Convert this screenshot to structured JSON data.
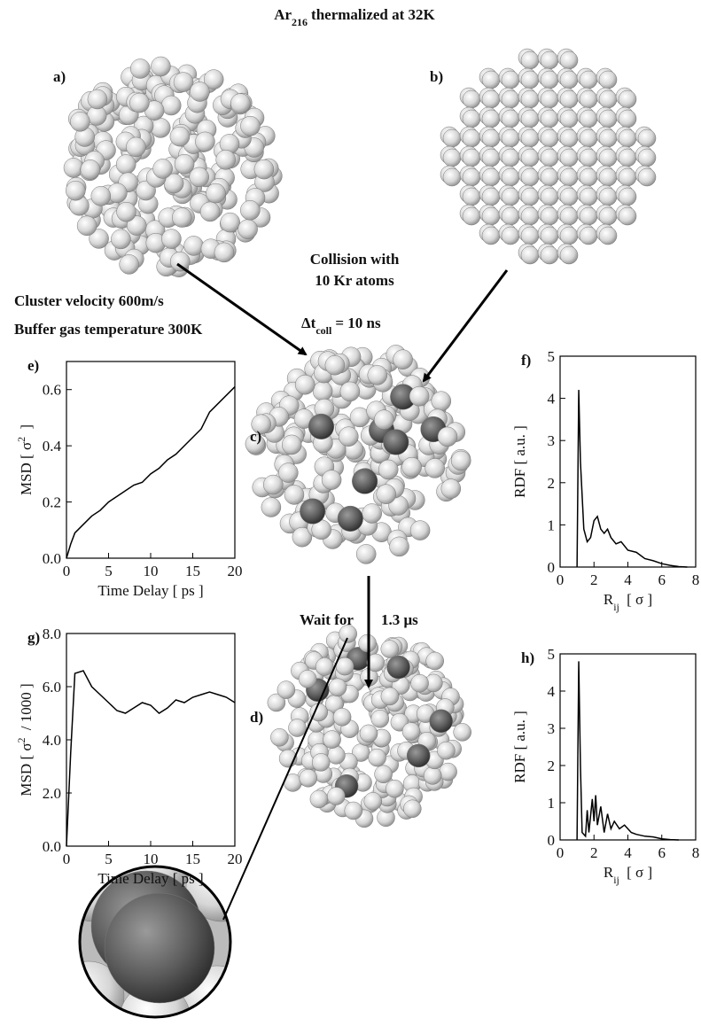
{
  "figure": {
    "title": {
      "text": "Ar",
      "sub": "216",
      "after": "thermalized at 32K"
    },
    "panel_labels": {
      "a": "a)",
      "b": "b)",
      "c": "c)",
      "d": "d)"
    },
    "collision": [
      "Collision with",
      "10 Kr atoms"
    ],
    "cluster_velocity": "Cluster velocity 600m/s",
    "buffer_gas": "Buffer gas temperature 300K",
    "collision_time": {
      "text": "Δt",
      "sub": "coll",
      "after": "= 10 ns"
    },
    "wait": [
      "Wait for",
      "1.3 μs"
    ]
  },
  "chart_data": [
    {
      "type": "line",
      "label": "e)",
      "xlabel": "Time Delay  [ ps ]",
      "ylabel": {
        "text": "MSD  [ σ",
        "sup": "2",
        "after": " ]"
      },
      "xlim": [
        0,
        20
      ],
      "xticks": [
        0,
        5,
        10,
        15,
        20
      ],
      "ylim": [
        0,
        0.7
      ],
      "yticks": [
        {
          "value": 0,
          "label": "0.0"
        },
        0.2,
        0.4,
        0.6
      ],
      "x": [
        0,
        0.5,
        1,
        2,
        3,
        4,
        5,
        6,
        7,
        8,
        9,
        10,
        11,
        12,
        13,
        14,
        15,
        16,
        17,
        18,
        19,
        20
      ],
      "series": [
        {
          "color": "#000000",
          "values": [
            0,
            0.05,
            0.09,
            0.12,
            0.15,
            0.17,
            0.2,
            0.22,
            0.24,
            0.26,
            0.27,
            0.3,
            0.32,
            0.35,
            0.37,
            0.4,
            0.43,
            0.46,
            0.52,
            0.55,
            0.58,
            0.61
          ]
        }
      ]
    },
    {
      "type": "line",
      "label": "f)",
      "xlabel": {
        "text": "R",
        "sub": "ij",
        "after": " [ σ ]"
      },
      "ylabel": "RDF  [ a.u. ]",
      "xlim": [
        0,
        8
      ],
      "xticks": [
        0,
        2,
        4,
        6,
        8
      ],
      "ylim": [
        0,
        5
      ],
      "yticks": [
        0,
        1,
        2,
        3,
        4,
        5
      ],
      "x": [
        1,
        1.1,
        1.2,
        1.4,
        1.6,
        1.8,
        2,
        2.2,
        2.4,
        2.6,
        2.8,
        3,
        3.3,
        3.6,
        4,
        4.5,
        5,
        5.5,
        6,
        6.5,
        7,
        7.5
      ],
      "series": [
        {
          "color": "#000000",
          "values": [
            0,
            4.2,
            2.5,
            0.9,
            0.6,
            0.7,
            1.1,
            1.2,
            0.9,
            0.8,
            0.9,
            0.7,
            0.55,
            0.6,
            0.4,
            0.35,
            0.2,
            0.15,
            0.08,
            0.04,
            0.01,
            0
          ]
        }
      ]
    },
    {
      "type": "line",
      "label": "g)",
      "xlabel": "Time Delay  [ ps ]",
      "ylabel": {
        "text": "MSD  [ σ",
        "sup": "2",
        "after": " / 1000 ]"
      },
      "xlim": [
        0,
        20
      ],
      "xticks": [
        0,
        5,
        10,
        15,
        20
      ],
      "ylim": [
        0,
        8
      ],
      "yticks": [
        {
          "value": 0,
          "label": "0.0"
        },
        {
          "value": 2,
          "label": "2.0"
        },
        {
          "value": 4,
          "label": "4.0"
        },
        {
          "value": 6,
          "label": "6.0"
        },
        {
          "value": 8,
          "label": "8.0"
        }
      ],
      "x": [
        0,
        0.5,
        1,
        2,
        3,
        4,
        5,
        6,
        7,
        8,
        9,
        10,
        11,
        12,
        13,
        14,
        15,
        16,
        17,
        18,
        19,
        20
      ],
      "series": [
        {
          "color": "#000000",
          "values": [
            0,
            3.5,
            6.5,
            6.6,
            6,
            5.7,
            5.4,
            5.1,
            5,
            5.2,
            5.4,
            5.3,
            5,
            5.2,
            5.5,
            5.4,
            5.6,
            5.7,
            5.8,
            5.7,
            5.6,
            5.4
          ]
        }
      ]
    },
    {
      "type": "line",
      "label": "h)",
      "xlabel": {
        "text": "R",
        "sub": "ij",
        "after": " [ σ ]"
      },
      "ylabel": "RDF  [ a.u. ]",
      "xlim": [
        0,
        8
      ],
      "xticks": [
        0,
        2,
        4,
        6,
        8
      ],
      "ylim": [
        0,
        5
      ],
      "yticks": [
        0,
        1,
        2,
        3,
        4,
        5
      ],
      "x": [
        1,
        1.1,
        1.2,
        1.3,
        1.5,
        1.6,
        1.7,
        1.9,
        2,
        2.1,
        2.2,
        2.4,
        2.6,
        2.8,
        3,
        3.2,
        3.5,
        3.8,
        4.2,
        4.5,
        5,
        5.5,
        6,
        6.5,
        7
      ],
      "series": [
        {
          "color": "#000000",
          "values": [
            0,
            4.8,
            2,
            0.2,
            0.1,
            0.8,
            0.2,
            1.1,
            0.5,
            1.2,
            0.4,
            0.9,
            0.2,
            0.7,
            0.3,
            0.5,
            0.3,
            0.4,
            0.2,
            0.15,
            0.1,
            0.08,
            0.03,
            0.01,
            0
          ]
        }
      ]
    }
  ]
}
